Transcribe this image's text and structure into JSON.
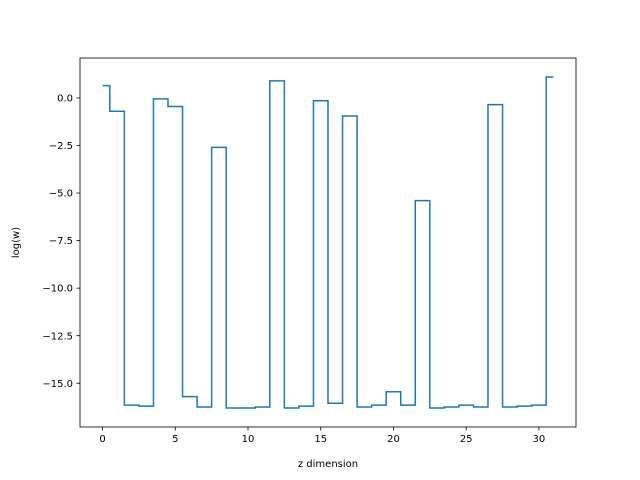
{
  "chart_data": {
    "type": "line",
    "drawstyle": "steps-mid",
    "xlabel": "z dimension",
    "ylabel": "log(w)",
    "xlim": [
      -1.55,
      32.55
    ],
    "ylim": [
      -17.3,
      2.1
    ],
    "xticks": [
      0,
      5,
      10,
      15,
      20,
      25,
      30
    ],
    "xtick_labels": [
      "0",
      "5",
      "10",
      "15",
      "20",
      "25",
      "30"
    ],
    "yticks": [
      0.0,
      -2.5,
      -5.0,
      -7.5,
      -10.0,
      -12.5,
      -15.0
    ],
    "ytick_labels": [
      "0.0",
      "−2.5",
      "−5.0",
      "−7.5",
      "−10.0",
      "−12.5",
      "−15.0"
    ],
    "grid": false,
    "legend": "none",
    "line_color": "#1f77b4",
    "series": [
      {
        "x": [
          0,
          1,
          2,
          3,
          4,
          5,
          6,
          7,
          8,
          9,
          10,
          11,
          12,
          13,
          14,
          15,
          16,
          17,
          18,
          19,
          20,
          21,
          22,
          23,
          24,
          25,
          26,
          27,
          28,
          29,
          30,
          31
        ],
        "values": [
          0.65,
          -0.7,
          -16.15,
          -16.2,
          -0.05,
          -0.45,
          -15.7,
          -16.25,
          -2.6,
          -16.3,
          -16.3,
          -16.25,
          0.9,
          -16.3,
          -16.2,
          -0.15,
          -16.05,
          -0.95,
          -16.25,
          -16.15,
          -15.45,
          -16.15,
          -5.4,
          -16.3,
          -16.25,
          -16.15,
          -16.25,
          -0.35,
          -16.25,
          -16.2,
          -16.15,
          1.1
        ]
      }
    ]
  }
}
